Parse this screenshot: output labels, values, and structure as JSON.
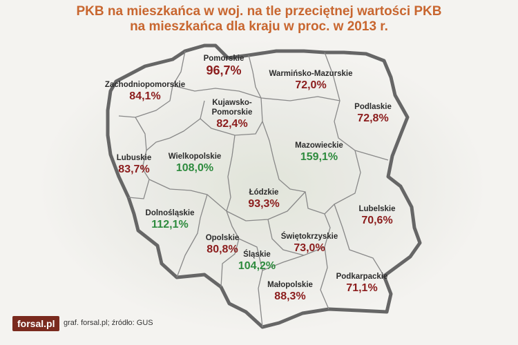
{
  "title": {
    "line1": "PKB na mieszkańca w woj. na tle przeciętnej wartości PKB",
    "line2": "na mieszkańca dla kraju w proc. w 2013 r."
  },
  "regions": [
    {
      "name": "Pomorskie",
      "value": "96,7%",
      "status": "below"
    },
    {
      "name": "Warmińsko-Mazurskie",
      "value": "72,0%",
      "status": "below"
    },
    {
      "name": "Zachodniopomorskie",
      "value": "84,1%",
      "status": "below"
    },
    {
      "name": "Kujawsko-Pomorskie",
      "value": "82,4%",
      "status": "below"
    },
    {
      "name": "Podlaskie",
      "value": "72,8%",
      "status": "below"
    },
    {
      "name": "Mazowieckie",
      "value": "159,1%",
      "status": "above"
    },
    {
      "name": "Lubuskie",
      "value": "83,7%",
      "status": "below"
    },
    {
      "name": "Wielkopolskie",
      "value": "108,0%",
      "status": "above"
    },
    {
      "name": "Łódzkie",
      "value": "93,3%",
      "status": "below"
    },
    {
      "name": "Dolnośląskie",
      "value": "112,1%",
      "status": "above"
    },
    {
      "name": "Lubelskie",
      "value": "70,6%",
      "status": "below"
    },
    {
      "name": "Opolskie",
      "value": "80,8%",
      "status": "below"
    },
    {
      "name": "Świętokrzyskie",
      "value": "73,0%",
      "status": "below"
    },
    {
      "name": "Śląskie",
      "value": "104,2%",
      "status": "above"
    },
    {
      "name": "Podkarpackie",
      "value": "71,1%",
      "status": "below"
    },
    {
      "name": "Małopolskie",
      "value": "88,3%",
      "status": "below"
    }
  ],
  "colors": {
    "title": "#c8662f",
    "above_average": "#2e8b3e",
    "below_average": "#8b1c1c",
    "border": "#666666"
  },
  "footer": {
    "logo": "forsal.pl",
    "credits": "graf. forsal.pl;  źródło: GUS"
  }
}
